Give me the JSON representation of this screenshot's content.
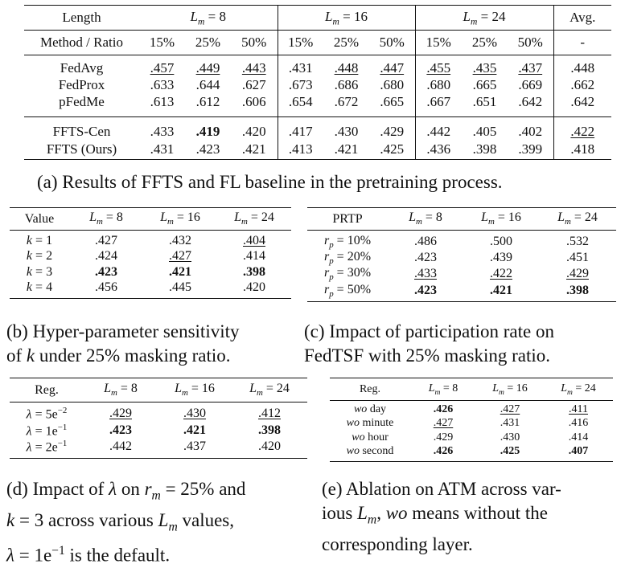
{
  "table_a": {
    "length_label": "Length",
    "group_lm8": "L_m = 8",
    "group_lm16": "L_m = 16",
    "group_lm24": "L_m = 24",
    "avg_label": "Avg.",
    "method_ratio_label": "Method / Ratio",
    "ratios": [
      "15%",
      "25%",
      "50%",
      "15%",
      "25%",
      "50%",
      "15%",
      "25%",
      "50%"
    ],
    "avg_dash": "-",
    "rows_group1": [
      {
        "method": "FedAvg",
        "values": [
          ".457",
          ".449",
          ".443",
          ".431",
          ".448",
          ".447",
          ".455",
          ".435",
          ".437",
          ".448"
        ]
      },
      {
        "method": "FedProx",
        "values": [
          ".633",
          ".644",
          ".627",
          ".673",
          ".686",
          ".680",
          ".680",
          ".665",
          ".669",
          ".662"
        ]
      },
      {
        "method": "pFedMe",
        "values": [
          ".613",
          ".612",
          ".606",
          ".654",
          ".672",
          ".665",
          ".667",
          ".651",
          ".642",
          ".642"
        ]
      }
    ],
    "rows_group2": [
      {
        "method": "FFTS-Cen",
        "values": [
          ".433",
          ".419",
          ".420",
          ".417",
          ".430",
          ".429",
          ".442",
          ".405",
          ".402",
          ".422"
        ]
      },
      {
        "method": "FFTS (Ours)",
        "values": [
          ".431",
          ".423",
          ".421",
          ".413",
          ".421",
          ".425",
          ".436",
          ".398",
          ".399",
          ".418"
        ]
      }
    ],
    "caption": "(a) Results of FFTS and FL baseline in the pretraining process."
  },
  "table_b": {
    "header_value": "Value",
    "rows": [
      {
        "k": "1",
        "values": [
          ".427",
          ".432",
          ".404"
        ]
      },
      {
        "k": "2",
        "values": [
          ".424",
          ".427",
          ".414"
        ]
      },
      {
        "k": "3",
        "values": [
          ".423",
          ".421",
          ".398"
        ]
      },
      {
        "k": "4",
        "values": [
          ".456",
          ".445",
          ".420"
        ]
      }
    ],
    "caption_line1": "(b) Hyper-parameter sensitivity",
    "caption_line2a": "of",
    "caption_line2b": "under 25% masking ratio."
  },
  "table_c": {
    "header_prtp": "PRTP",
    "rows": [
      {
        "rp": "10%",
        "values": [
          ".486",
          ".500",
          ".532"
        ]
      },
      {
        "rp": "20%",
        "values": [
          ".423",
          ".439",
          ".451"
        ]
      },
      {
        "rp": "30%",
        "values": [
          ".433",
          ".422",
          ".429"
        ]
      },
      {
        "rp": "50%",
        "values": [
          ".423",
          ".421",
          ".398"
        ]
      }
    ],
    "caption_line1": "(c) Impact of participation rate on",
    "caption_line2": "FedTSF with 25% masking ratio."
  },
  "table_d": {
    "header_reg": "Reg.",
    "rows": [
      {
        "lam_base": "5e",
        "lam_exp": "−2",
        "values": [
          ".429",
          ".430",
          ".412"
        ]
      },
      {
        "lam_base": "1e",
        "lam_exp": "−1",
        "values": [
          ".423",
          ".421",
          ".398"
        ]
      },
      {
        "lam_base": "2e",
        "lam_exp": "−1",
        "values": [
          ".442",
          ".437",
          ".420"
        ]
      }
    ],
    "caption_line1a": "(d) Impact of",
    "caption_line1b": "on",
    "caption_line1c": "= 25% and",
    "caption_line2a": "= 3 across various",
    "caption_line2b": "values,",
    "caption_line3a": "= 1e",
    "caption_line3b": "is the default."
  },
  "table_e": {
    "header_reg": "Reg.",
    "rows": [
      {
        "wo": "wo",
        "layer": "day",
        "values": [
          ".426",
          ".427",
          ".411"
        ]
      },
      {
        "wo": "wo",
        "layer": "minute",
        "values": [
          ".427",
          ".431",
          ".416"
        ]
      },
      {
        "wo": "wo",
        "layer": "hour",
        "values": [
          ".429",
          ".430",
          ".414"
        ]
      },
      {
        "wo": "wo",
        "layer": "second",
        "values": [
          ".426",
          ".425",
          ".407"
        ]
      }
    ],
    "caption_line1": "(e) Ablation on ATM across var-",
    "caption_line2a": "ious",
    "caption_line2b": ",",
    "caption_line2c": "wo",
    "caption_line2d": "means without the",
    "caption_line3": "corresponding layer."
  }
}
